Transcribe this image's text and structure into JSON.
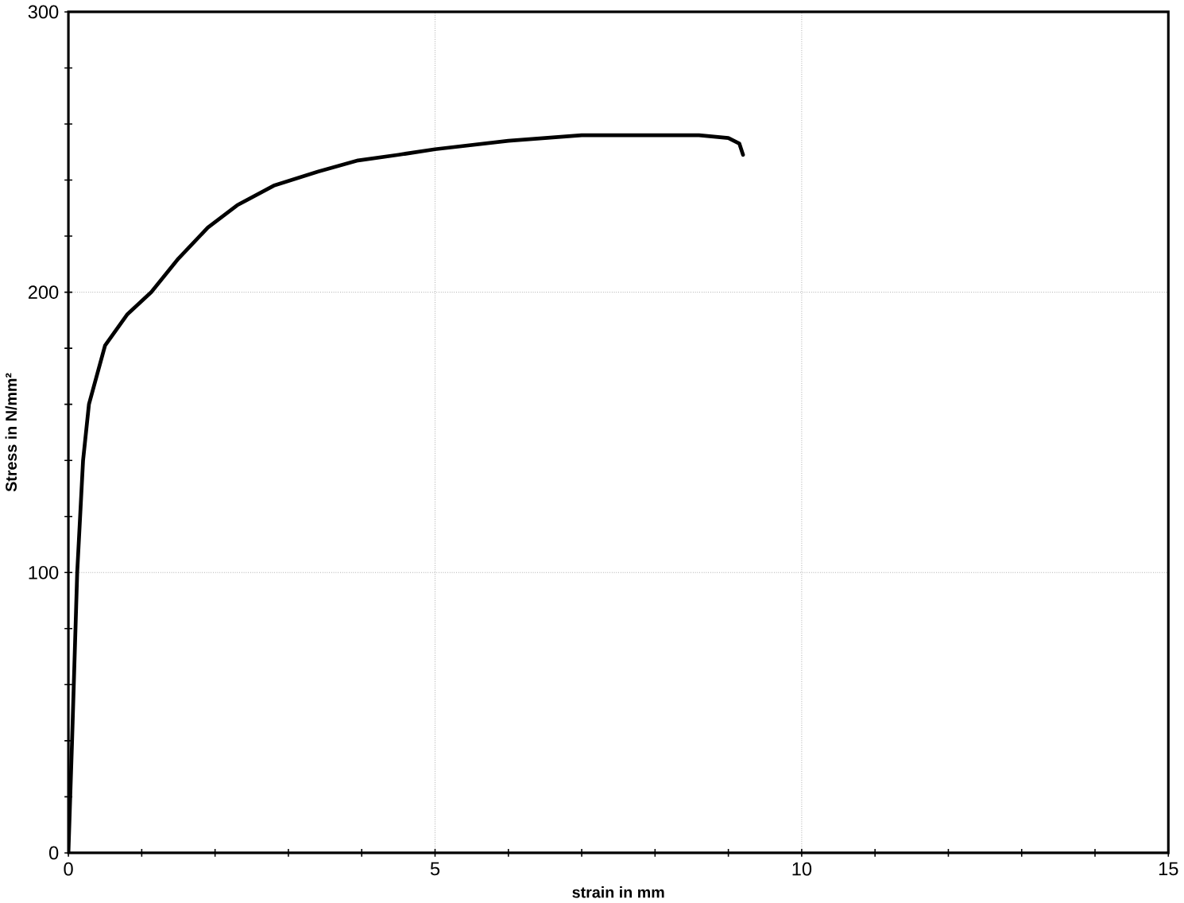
{
  "chart_data": {
    "type": "line",
    "xlabel": "strain in mm",
    "ylabel": "Stress in N/mm²",
    "x": [
      0,
      0.05,
      0.12,
      0.2,
      0.28,
      0.5,
      0.8,
      1.13,
      1.5,
      1.9,
      2.3,
      2.8,
      3.4,
      3.95,
      4.5,
      5.0,
      6.0,
      7.0,
      8.0,
      8.6,
      9.0,
      9.15,
      9.2
    ],
    "values": [
      0,
      40,
      100,
      140,
      160,
      181,
      192,
      200,
      212,
      223,
      231,
      238,
      243,
      247,
      249,
      251,
      254,
      256,
      256,
      256,
      255,
      253,
      249
    ],
    "color": "#000000",
    "marker": "none",
    "line_style": "solid",
    "grid": true,
    "xlim": [
      0,
      15
    ],
    "ylim": [
      0,
      300
    ],
    "xticks": [
      0,
      {
        "value": 1,
        "label": null
      },
      {
        "value": 2,
        "label": null
      },
      {
        "value": 3,
        "label": null
      },
      {
        "value": 4,
        "label": null
      },
      5,
      {
        "value": 6,
        "label": null
      },
      {
        "value": 7,
        "label": null
      },
      {
        "value": 8,
        "label": null
      },
      {
        "value": 9,
        "label": null
      },
      10,
      {
        "value": 11,
        "label": null
      },
      {
        "value": 12,
        "label": null
      },
      {
        "value": 13,
        "label": null
      },
      {
        "value": 14,
        "label": null
      },
      15
    ],
    "yticks": [
      0,
      {
        "value": 20,
        "label": null
      },
      {
        "value": 40,
        "label": null
      },
      {
        "value": 60,
        "label": null
      },
      {
        "value": 80,
        "label": null
      },
      100,
      {
        "value": 120,
        "label": null
      },
      {
        "value": 140,
        "label": null
      },
      {
        "value": 160,
        "label": null
      },
      {
        "value": 180,
        "label": null
      },
      200,
      {
        "value": 220,
        "label": null
      },
      {
        "value": 240,
        "label": null
      },
      {
        "value": 260,
        "label": null
      },
      {
        "value": 280,
        "label": null
      },
      300
    ]
  }
}
